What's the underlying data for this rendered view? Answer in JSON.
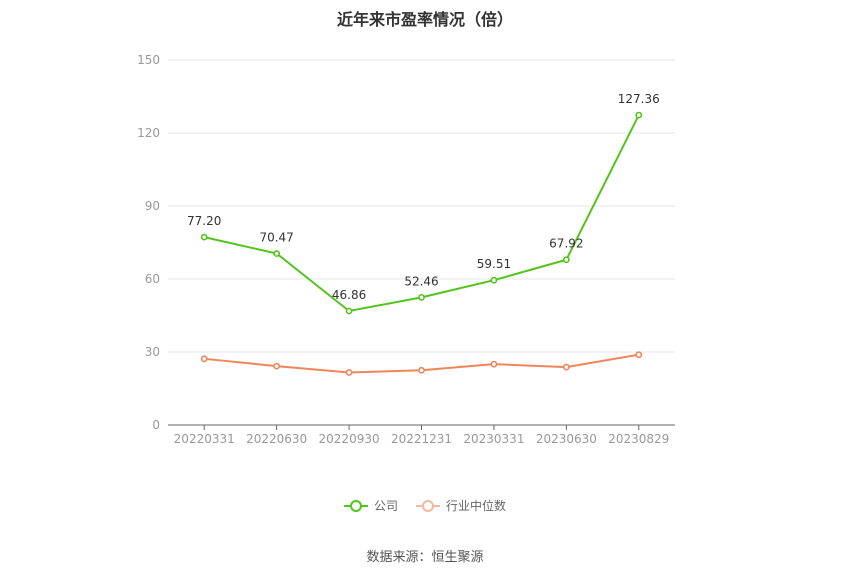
{
  "title": "近年来市盈率情况（倍）",
  "source": "数据来源：恒生聚源",
  "colors": {
    "company": "#52c41a",
    "industry": "#f0855a",
    "grid": "#e6e6e6",
    "axis": "#999999"
  },
  "chart_data": {
    "type": "line",
    "title": "近年来市盈率情况（倍）",
    "xlabel": "",
    "ylabel": "",
    "categories": [
      "20220331",
      "20220630",
      "20220930",
      "20221231",
      "20230331",
      "20230630",
      "20230829"
    ],
    "ylim": [
      0,
      150
    ],
    "yticks": [
      0,
      30,
      60,
      90,
      120,
      150
    ],
    "grid": true,
    "legend_position": "bottom",
    "series": [
      {
        "name": "公司",
        "values": [
          77.2,
          70.47,
          46.86,
          52.46,
          59.51,
          67.92,
          127.36
        ],
        "labels": [
          "77.20",
          "70.47",
          "46.86",
          "52.46",
          "59.51",
          "67.92",
          "127.36"
        ]
      },
      {
        "name": "行业中位数",
        "values": [
          27.2,
          24.2,
          21.6,
          22.5,
          25.0,
          23.8,
          28.9
        ]
      }
    ]
  }
}
